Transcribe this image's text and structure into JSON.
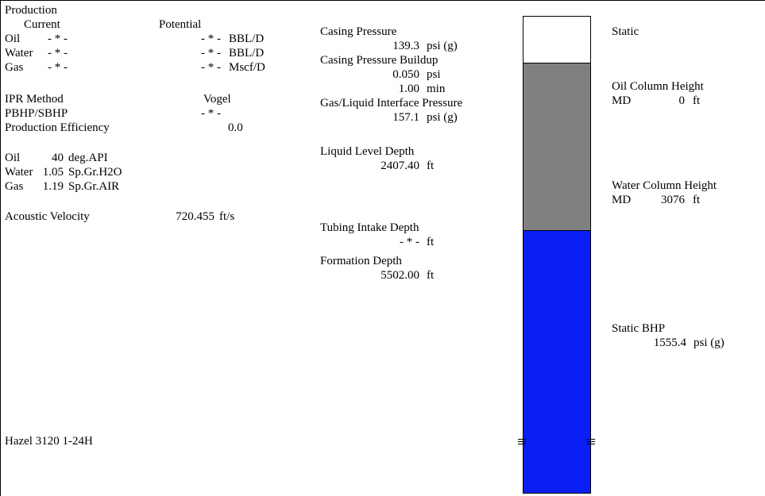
{
  "production": {
    "title": "Production",
    "col_current": "Current",
    "col_potential": "Potential",
    "rows": [
      {
        "label": "Oil",
        "current": "- * -",
        "potential": "- * -",
        "unit": "BBL/D"
      },
      {
        "label": "Water",
        "current": "- * -",
        "potential": "- * -",
        "unit": "BBL/D"
      },
      {
        "label": "Gas",
        "current": "- * -",
        "potential": "- * -",
        "unit": "Mscf/D"
      }
    ]
  },
  "ipr": {
    "method_label": "IPR Method",
    "method_value": "Vogel",
    "pbhp_label": "PBHP/SBHP",
    "pbhp_value": "- * -",
    "eff_label": "Production Efficiency",
    "eff_value": "0.0"
  },
  "fluids": [
    {
      "label": "Oil",
      "value": "40",
      "unit": "deg.API"
    },
    {
      "label": "Water",
      "value": "1.05",
      "unit": "Sp.Gr.H2O"
    },
    {
      "label": "Gas",
      "value": "1.19",
      "unit": "Sp.Gr.AIR"
    }
  ],
  "acoustic": {
    "label": "Acoustic Velocity",
    "value": "720.455",
    "unit": "ft/s"
  },
  "well_name": "Hazel 3120 1-24H",
  "casing": {
    "pressure_label": "Casing Pressure",
    "pressure_value": "139.3",
    "pressure_unit": "psi (g)",
    "buildup_label": "Casing Pressure Buildup",
    "buildup_value": "0.050",
    "buildup_unit": "psi",
    "buildup_time": "1.00",
    "buildup_time_unit": "min"
  },
  "interface": {
    "label": "Gas/Liquid Interface Pressure",
    "value": "157.1",
    "unit": "psi (g)"
  },
  "liquid_level": {
    "label": "Liquid Level Depth",
    "value": "2407.40",
    "unit": "ft"
  },
  "tubing": {
    "label": "Tubing Intake Depth",
    "value": "- * -",
    "unit": "ft"
  },
  "formation": {
    "label": "Formation Depth",
    "value": "5502.00",
    "unit": "ft"
  },
  "right": {
    "status": "Static",
    "oil_col_label": "Oil Column Height",
    "oil_md_label": "MD",
    "oil_md_value": "0",
    "oil_md_unit": "ft",
    "water_col_label": "Water Column Height",
    "water_md_label": "MD",
    "water_md_value": "3076",
    "water_md_unit": "ft",
    "bhp_label": "Static BHP",
    "bhp_value": "1555.4",
    "bhp_unit": "psi (g)"
  },
  "colors": {
    "gas": "#ffffff",
    "oil": "#808080",
    "water": "#0a1ff5"
  }
}
